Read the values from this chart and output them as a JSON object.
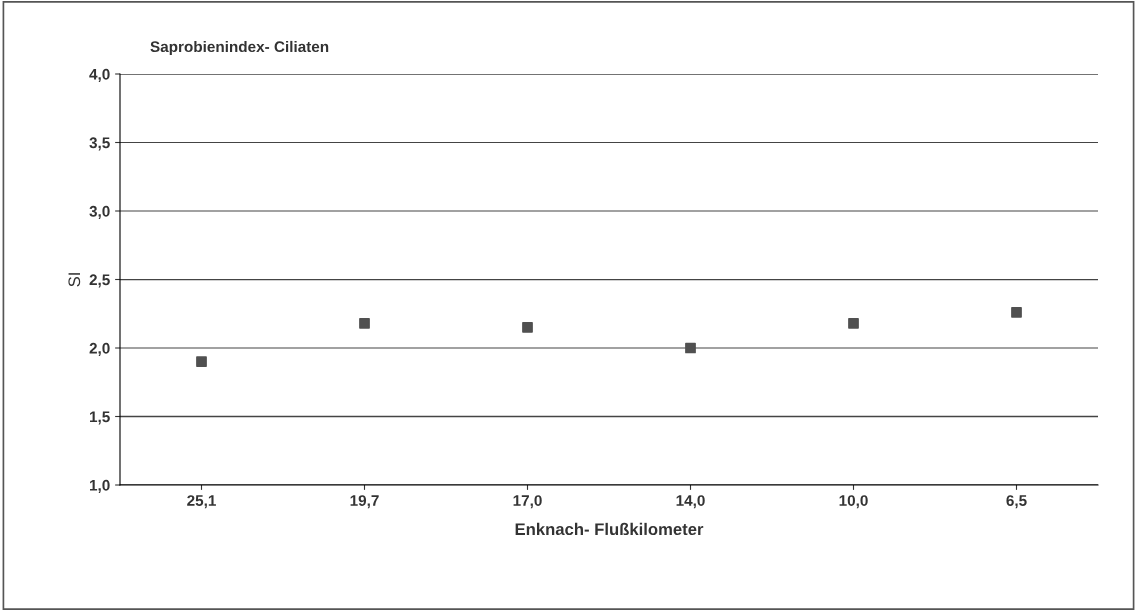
{
  "chart_data": {
    "type": "scatter",
    "title": "Saprobienindex- Ciliaten",
    "xlabel": "Enknach- Flußkilometer",
    "ylabel": "SI",
    "categories": [
      "25,1",
      "19,7",
      "17,0",
      "14,0",
      "10,0",
      "6,5"
    ],
    "series": [
      {
        "color": "#505050",
        "values": [
          1.9,
          2.18,
          2.15,
          2.0,
          2.18,
          2.26
        ]
      }
    ],
    "ylim": [
      1.0,
      4.0
    ],
    "yticks": [
      {
        "value": 1.0,
        "label": "1,0"
      },
      {
        "value": 1.5,
        "label": "1,5"
      },
      {
        "value": 2.0,
        "label": "2,0"
      },
      {
        "value": 2.5,
        "label": "2,5"
      },
      {
        "value": 3.0,
        "label": "3,0"
      },
      {
        "value": 3.5,
        "label": "3,5"
      },
      {
        "value": 4.0,
        "label": "4,0"
      }
    ],
    "grid": "y",
    "marker": "square",
    "legend": false
  }
}
